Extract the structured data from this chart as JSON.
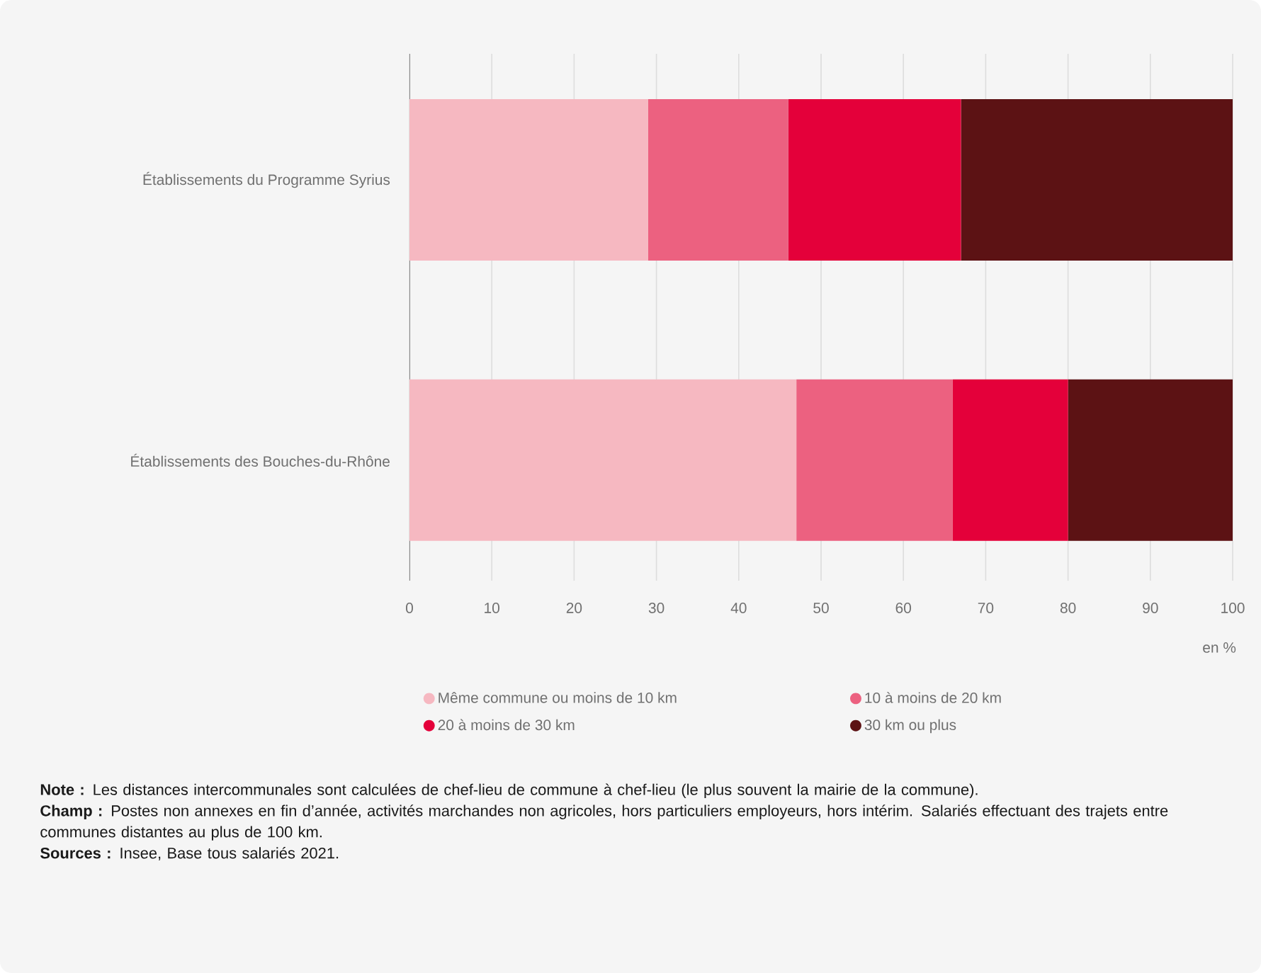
{
  "chart_data": {
    "type": "bar",
    "orientation": "horizontal",
    "stacked": true,
    "categories": [
      "Établissements du Programme Syrius",
      "Établissements des Bouches-du-Rhône"
    ],
    "series": [
      {
        "name": "Même commune ou moins de 10 km",
        "color": "#f6b8c1",
        "values": [
          29,
          47
        ]
      },
      {
        "name": "10 à moins de 20 km",
        "color": "#ec6180",
        "values": [
          17,
          19
        ]
      },
      {
        "name": "20 à moins de 30 km",
        "color": "#e4003a",
        "values": [
          21,
          14
        ]
      },
      {
        "name": "30 km ou plus",
        "color": "#5c1214",
        "values": [
          33,
          20
        ]
      }
    ],
    "xlim": [
      0,
      100
    ],
    "xticks": [
      0,
      10,
      20,
      30,
      40,
      50,
      60,
      70,
      80,
      90,
      100
    ],
    "xlabel": "en %",
    "grid": "x",
    "legend": "bottom",
    "marker": "circle",
    "annotations": [
      "**Note :** Les distances intercommunales sont calculées de chef-lieu de commune à chef-lieu (le plus souvent la mairie de la commune).",
      "**Champ :** Postes non annexes en fin d’année, activités marchandes non agricoles, hors particuliers employeurs, hors intérim. Salariés effectuant des trajets entre communes distantes au plus de 100 km.",
      "**Sources :** Insee, Base tous salariés 2021."
    ]
  }
}
